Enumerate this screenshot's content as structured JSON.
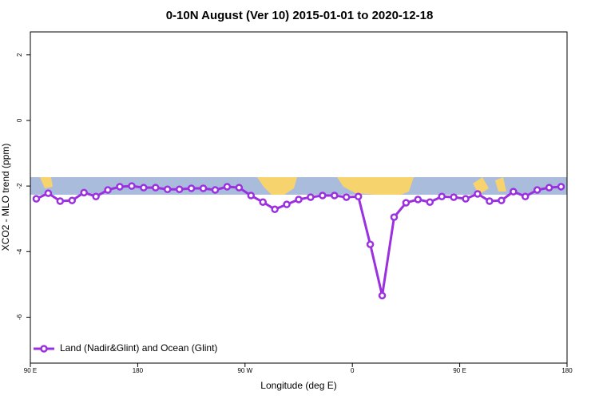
{
  "chart_data": {
    "type": "line",
    "title": "0-10N August (Ver 10)   2015-01-01 to 2020-12-18",
    "x_label": "Longitude (deg E)",
    "y_label": "XCO2 - MLO trend (ppm)",
    "x": [
      95,
      105,
      115,
      125,
      135,
      145,
      155,
      165,
      175,
      185,
      195,
      205,
      215,
      225,
      235,
      245,
      255,
      265,
      275,
      285,
      295,
      305,
      315,
      325,
      335,
      345,
      355,
      365,
      375,
      385,
      395,
      405,
      415,
      425,
      435,
      445,
      455,
      465,
      475,
      485,
      495,
      505,
      515,
      525,
      535
    ],
    "series": [
      {
        "name": "Land (Nadir&Glint) and Ocean (Glint)",
        "color": "#9b30e0",
        "values": [
          -2.39,
          -2.22,
          -2.46,
          -2.44,
          -2.2,
          -2.32,
          -2.12,
          -2.02,
          -2.0,
          -2.05,
          -2.05,
          -2.1,
          -2.1,
          -2.07,
          -2.07,
          -2.12,
          -2.02,
          -2.05,
          -2.29,
          -2.49,
          -2.71,
          -2.56,
          -2.41,
          -2.34,
          -2.29,
          -2.29,
          -2.34,
          -2.32,
          -3.78,
          -5.34,
          -2.95,
          -2.51,
          -2.41,
          -2.49,
          -2.32,
          -2.34,
          -2.39,
          -2.24,
          -2.46,
          -2.44,
          -2.17,
          -2.32,
          -2.12,
          -2.05,
          -2.02
        ]
      }
    ],
    "xlim": [
      90,
      540
    ],
    "xticks": [
      {
        "value": 90,
        "label": "90 E"
      },
      {
        "value": 180,
        "label": "180"
      },
      {
        "value": 270,
        "label": "90 W"
      },
      {
        "value": 360,
        "label": "0"
      },
      {
        "value": 450,
        "label": "90 E"
      },
      {
        "value": 540,
        "label": "180"
      }
    ],
    "ylim": [
      -7.4,
      2.7
    ],
    "yticks": [
      -6,
      -4,
      -2,
      0,
      2
    ],
    "legend": "bottom-left"
  }
}
